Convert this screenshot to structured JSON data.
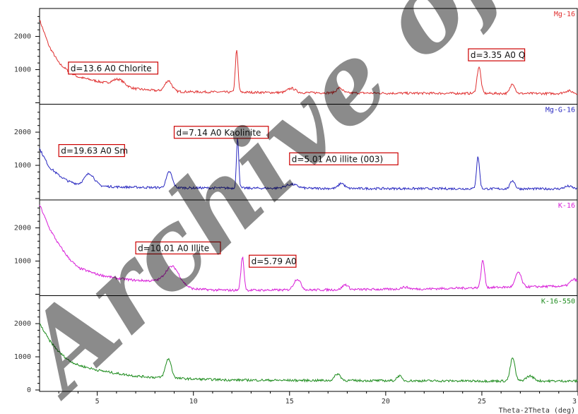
{
  "chart_data": {
    "type": "line",
    "xlabel": "Theta-2Theta (deg)",
    "x_tick_labels": [
      "5",
      "10",
      "15",
      "20",
      "25",
      "3"
    ],
    "y_tick_labels": [
      "0",
      "1000",
      "2000"
    ],
    "xlim": [
      2,
      30
    ],
    "panels": [
      {
        "name": "Mg-16",
        "color": "#e03030",
        "ylim": [
          0,
          2800
        ],
        "baseline": [
          [
            2,
            2500
          ],
          [
            2.5,
            1700
          ],
          [
            3,
            1200
          ],
          [
            3.5,
            950
          ],
          [
            4,
            780
          ],
          [
            5,
            650
          ],
          [
            6,
            520
          ],
          [
            7,
            420
          ],
          [
            8,
            370
          ],
          [
            9,
            340
          ],
          [
            10,
            330
          ],
          [
            12,
            320
          ],
          [
            14,
            310
          ],
          [
            16,
            305
          ],
          [
            20,
            290
          ],
          [
            24,
            285
          ],
          [
            27,
            280
          ],
          [
            30,
            280
          ]
        ],
        "peaks": [
          [
            6.1,
            200,
            0.3
          ],
          [
            8.7,
            320,
            0.18
          ],
          [
            12.25,
            1250,
            0.07
          ],
          [
            15.1,
            130,
            0.2
          ],
          [
            17.6,
            150,
            0.15
          ],
          [
            24.85,
            800,
            0.1
          ],
          [
            26.6,
            300,
            0.12
          ],
          [
            29.5,
            80,
            0.2
          ]
        ],
        "annotations": [
          {
            "text": "d=13.6 A0 Chlorite",
            "x": 3.5,
            "y": 950
          },
          {
            "text": "d=3.35 A0 Q",
            "x": 24.3,
            "y": 1350
          }
        ]
      },
      {
        "name": "Mg-G-16",
        "color": "#2828c0",
        "ylim": [
          0,
          2800
        ],
        "baseline": [
          [
            2,
            1500
          ],
          [
            2.5,
            950
          ],
          [
            3,
            700
          ],
          [
            3.5,
            520
          ],
          [
            4,
            430
          ],
          [
            5,
            380
          ],
          [
            6,
            350
          ],
          [
            8,
            330
          ],
          [
            10,
            320
          ],
          [
            14,
            310
          ],
          [
            20,
            300
          ],
          [
            25,
            295
          ],
          [
            30,
            290
          ]
        ],
        "peaks": [
          [
            4.6,
            350,
            0.25
          ],
          [
            8.75,
            480,
            0.15
          ],
          [
            12.3,
            1500,
            0.06
          ],
          [
            15.1,
            120,
            0.3
          ],
          [
            17.7,
            160,
            0.15
          ],
          [
            24.8,
            960,
            0.08
          ],
          [
            26.6,
            250,
            0.12
          ],
          [
            29.5,
            80,
            0.2
          ]
        ],
        "annotations": [
          {
            "text": "d=19.63 A0 Sm",
            "x": 3.0,
            "y": 1350
          },
          {
            "text": "d=7.14 A0 Kaolinite",
            "x": 9.0,
            "y": 1900
          },
          {
            "text": "d=5.01 A0 illite (003)",
            "x": 15.0,
            "y": 1100
          }
        ]
      },
      {
        "name": "K-16",
        "color": "#d81ed8",
        "ylim": [
          0,
          2800
        ],
        "baseline": [
          [
            2,
            2700
          ],
          [
            2.5,
            2000
          ],
          [
            3,
            1500
          ],
          [
            3.5,
            1100
          ],
          [
            4,
            800
          ],
          [
            5,
            600
          ],
          [
            6,
            480
          ],
          [
            7,
            420
          ],
          [
            8,
            400
          ],
          [
            9,
            330
          ],
          [
            10,
            160
          ],
          [
            11,
            130
          ],
          [
            12,
            120
          ],
          [
            14,
            125
          ],
          [
            16,
            130
          ],
          [
            18,
            140
          ],
          [
            20,
            150
          ],
          [
            22,
            160
          ],
          [
            25,
            200
          ],
          [
            27,
            220
          ],
          [
            30,
            250
          ]
        ],
        "peaks": [
          [
            8.9,
            500,
            0.35
          ],
          [
            12.55,
            1000,
            0.08
          ],
          [
            15.4,
            330,
            0.18
          ],
          [
            17.9,
            150,
            0.15
          ],
          [
            21.0,
            60,
            0.2
          ],
          [
            25.05,
            820,
            0.09
          ],
          [
            26.9,
            450,
            0.15
          ],
          [
            29.8,
            200,
            0.2
          ]
        ],
        "annotations": [
          {
            "text": "d=10.01 A0 Illite",
            "x": 7.0,
            "y": 1300
          },
          {
            "text": "d=5.79 A0",
            "x": 12.9,
            "y": 900
          }
        ]
      },
      {
        "name": "K-16-550",
        "color": "#1e8c1e",
        "ylim": [
          0,
          2800
        ],
        "baseline": [
          [
            2,
            2000
          ],
          [
            2.5,
            1500
          ],
          [
            3,
            1150
          ],
          [
            3.5,
            900
          ],
          [
            4,
            750
          ],
          [
            5,
            600
          ],
          [
            6,
            500
          ],
          [
            7,
            420
          ],
          [
            8,
            380
          ],
          [
            10,
            330
          ],
          [
            12,
            300
          ],
          [
            15,
            290
          ],
          [
            20,
            280
          ],
          [
            25,
            270
          ],
          [
            30,
            270
          ]
        ],
        "peaks": [
          [
            8.7,
            580,
            0.15
          ],
          [
            17.5,
            200,
            0.15
          ],
          [
            20.7,
            150,
            0.12
          ],
          [
            26.6,
            700,
            0.12
          ],
          [
            27.5,
            150,
            0.2
          ]
        ],
        "annotations": []
      }
    ]
  },
  "watermark": "Archive of SID"
}
